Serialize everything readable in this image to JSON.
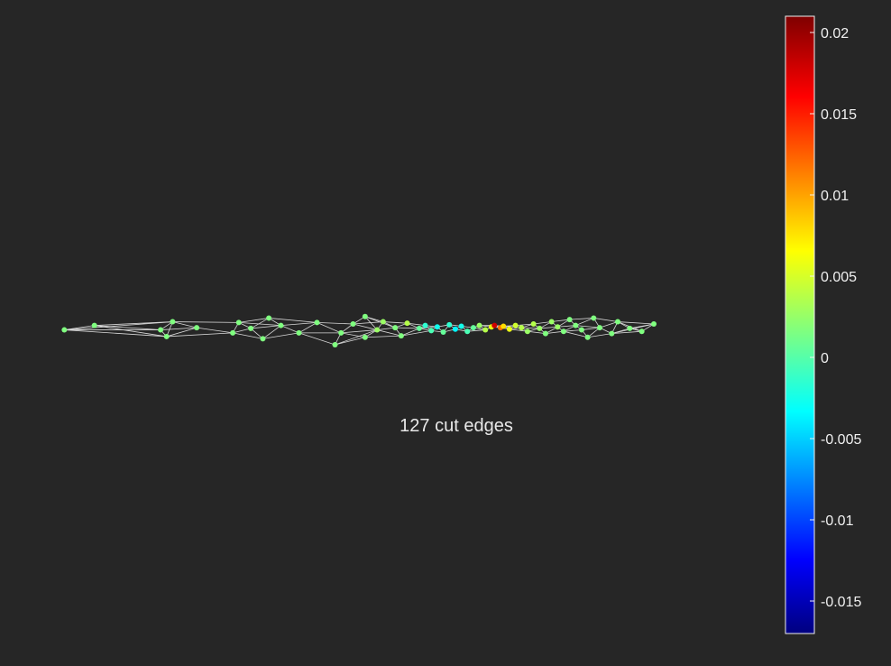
{
  "chart_data": {
    "type": "scatter",
    "title": "",
    "annotation": "127 cut edges",
    "colorbar": {
      "colormap": "jet",
      "range": [
        -0.017,
        0.021
      ],
      "ticks": [
        0.02,
        0.015,
        0.01,
        0.005,
        0,
        -0.005,
        -0.01,
        -0.015
      ],
      "tick_labels": [
        "0.02",
        "0.015",
        "0.01",
        "0.005",
        "0",
        "-0.005",
        "-0.01",
        "-0.015"
      ]
    },
    "mesh": {
      "edge_color": "#d8d8d8",
      "edge_count": 127
    },
    "nodes": [
      {
        "x": 0.02,
        "y": 0.58,
        "v": 0.002
      },
      {
        "x": 0.07,
        "y": 0.52,
        "v": 0.002
      },
      {
        "x": 0.19,
        "y": 0.67,
        "v": 0.002
      },
      {
        "x": 0.18,
        "y": 0.58,
        "v": 0.002
      },
      {
        "x": 0.2,
        "y": 0.47,
        "v": 0.002
      },
      {
        "x": 0.24,
        "y": 0.55,
        "v": 0.002
      },
      {
        "x": 0.3,
        "y": 0.62,
        "v": 0.002
      },
      {
        "x": 0.31,
        "y": 0.48,
        "v": 0.002
      },
      {
        "x": 0.33,
        "y": 0.56,
        "v": 0.002
      },
      {
        "x": 0.35,
        "y": 0.7,
        "v": 0.002
      },
      {
        "x": 0.36,
        "y": 0.42,
        "v": 0.002
      },
      {
        "x": 0.38,
        "y": 0.52,
        "v": 0.002
      },
      {
        "x": 0.41,
        "y": 0.62,
        "v": 0.002
      },
      {
        "x": 0.44,
        "y": 0.48,
        "v": 0.002
      },
      {
        "x": 0.47,
        "y": 0.78,
        "v": 0.002
      },
      {
        "x": 0.48,
        "y": 0.62,
        "v": 0.002
      },
      {
        "x": 0.5,
        "y": 0.5,
        "v": 0.002
      },
      {
        "x": 0.52,
        "y": 0.68,
        "v": 0.002
      },
      {
        "x": 0.52,
        "y": 0.4,
        "v": 0.002
      },
      {
        "x": 0.54,
        "y": 0.58,
        "v": 0.003
      },
      {
        "x": 0.55,
        "y": 0.47,
        "v": 0.003
      },
      {
        "x": 0.57,
        "y": 0.55,
        "v": 0.002
      },
      {
        "x": 0.58,
        "y": 0.66,
        "v": 0.002
      },
      {
        "x": 0.59,
        "y": 0.49,
        "v": 0.004
      },
      {
        "x": 0.61,
        "y": 0.56,
        "v": 0.001
      },
      {
        "x": 0.62,
        "y": 0.52,
        "v": -0.001
      },
      {
        "x": 0.63,
        "y": 0.59,
        "v": 0.0
      },
      {
        "x": 0.64,
        "y": 0.54,
        "v": -0.002
      },
      {
        "x": 0.65,
        "y": 0.61,
        "v": 0.001
      },
      {
        "x": 0.66,
        "y": 0.51,
        "v": -0.001
      },
      {
        "x": 0.67,
        "y": 0.57,
        "v": -0.003
      },
      {
        "x": 0.68,
        "y": 0.53,
        "v": -0.002
      },
      {
        "x": 0.69,
        "y": 0.6,
        "v": 0.0
      },
      {
        "x": 0.7,
        "y": 0.55,
        "v": 0.001
      },
      {
        "x": 0.71,
        "y": 0.52,
        "v": 0.003
      },
      {
        "x": 0.72,
        "y": 0.58,
        "v": 0.004
      },
      {
        "x": 0.73,
        "y": 0.54,
        "v": 0.006
      },
      {
        "x": 0.735,
        "y": 0.52,
        "v": 0.018
      },
      {
        "x": 0.745,
        "y": 0.55,
        "v": 0.012
      },
      {
        "x": 0.75,
        "y": 0.53,
        "v": 0.008
      },
      {
        "x": 0.76,
        "y": 0.57,
        "v": 0.006
      },
      {
        "x": 0.77,
        "y": 0.52,
        "v": 0.005
      },
      {
        "x": 0.78,
        "y": 0.55,
        "v": 0.004
      },
      {
        "x": 0.79,
        "y": 0.6,
        "v": 0.003
      },
      {
        "x": 0.8,
        "y": 0.5,
        "v": 0.004
      },
      {
        "x": 0.81,
        "y": 0.56,
        "v": 0.003
      },
      {
        "x": 0.82,
        "y": 0.63,
        "v": 0.002
      },
      {
        "x": 0.83,
        "y": 0.47,
        "v": 0.003
      },
      {
        "x": 0.84,
        "y": 0.54,
        "v": 0.003
      },
      {
        "x": 0.85,
        "y": 0.6,
        "v": 0.002
      },
      {
        "x": 0.86,
        "y": 0.44,
        "v": 0.002
      },
      {
        "x": 0.87,
        "y": 0.52,
        "v": 0.002
      },
      {
        "x": 0.88,
        "y": 0.58,
        "v": 0.002
      },
      {
        "x": 0.89,
        "y": 0.68,
        "v": 0.002
      },
      {
        "x": 0.9,
        "y": 0.42,
        "v": 0.002
      },
      {
        "x": 0.91,
        "y": 0.55,
        "v": 0.002
      },
      {
        "x": 0.93,
        "y": 0.63,
        "v": 0.002
      },
      {
        "x": 0.94,
        "y": 0.47,
        "v": 0.002
      },
      {
        "x": 0.96,
        "y": 0.56,
        "v": 0.002
      },
      {
        "x": 0.98,
        "y": 0.6,
        "v": 0.002
      },
      {
        "x": 1.0,
        "y": 0.5,
        "v": 0.002
      }
    ]
  }
}
